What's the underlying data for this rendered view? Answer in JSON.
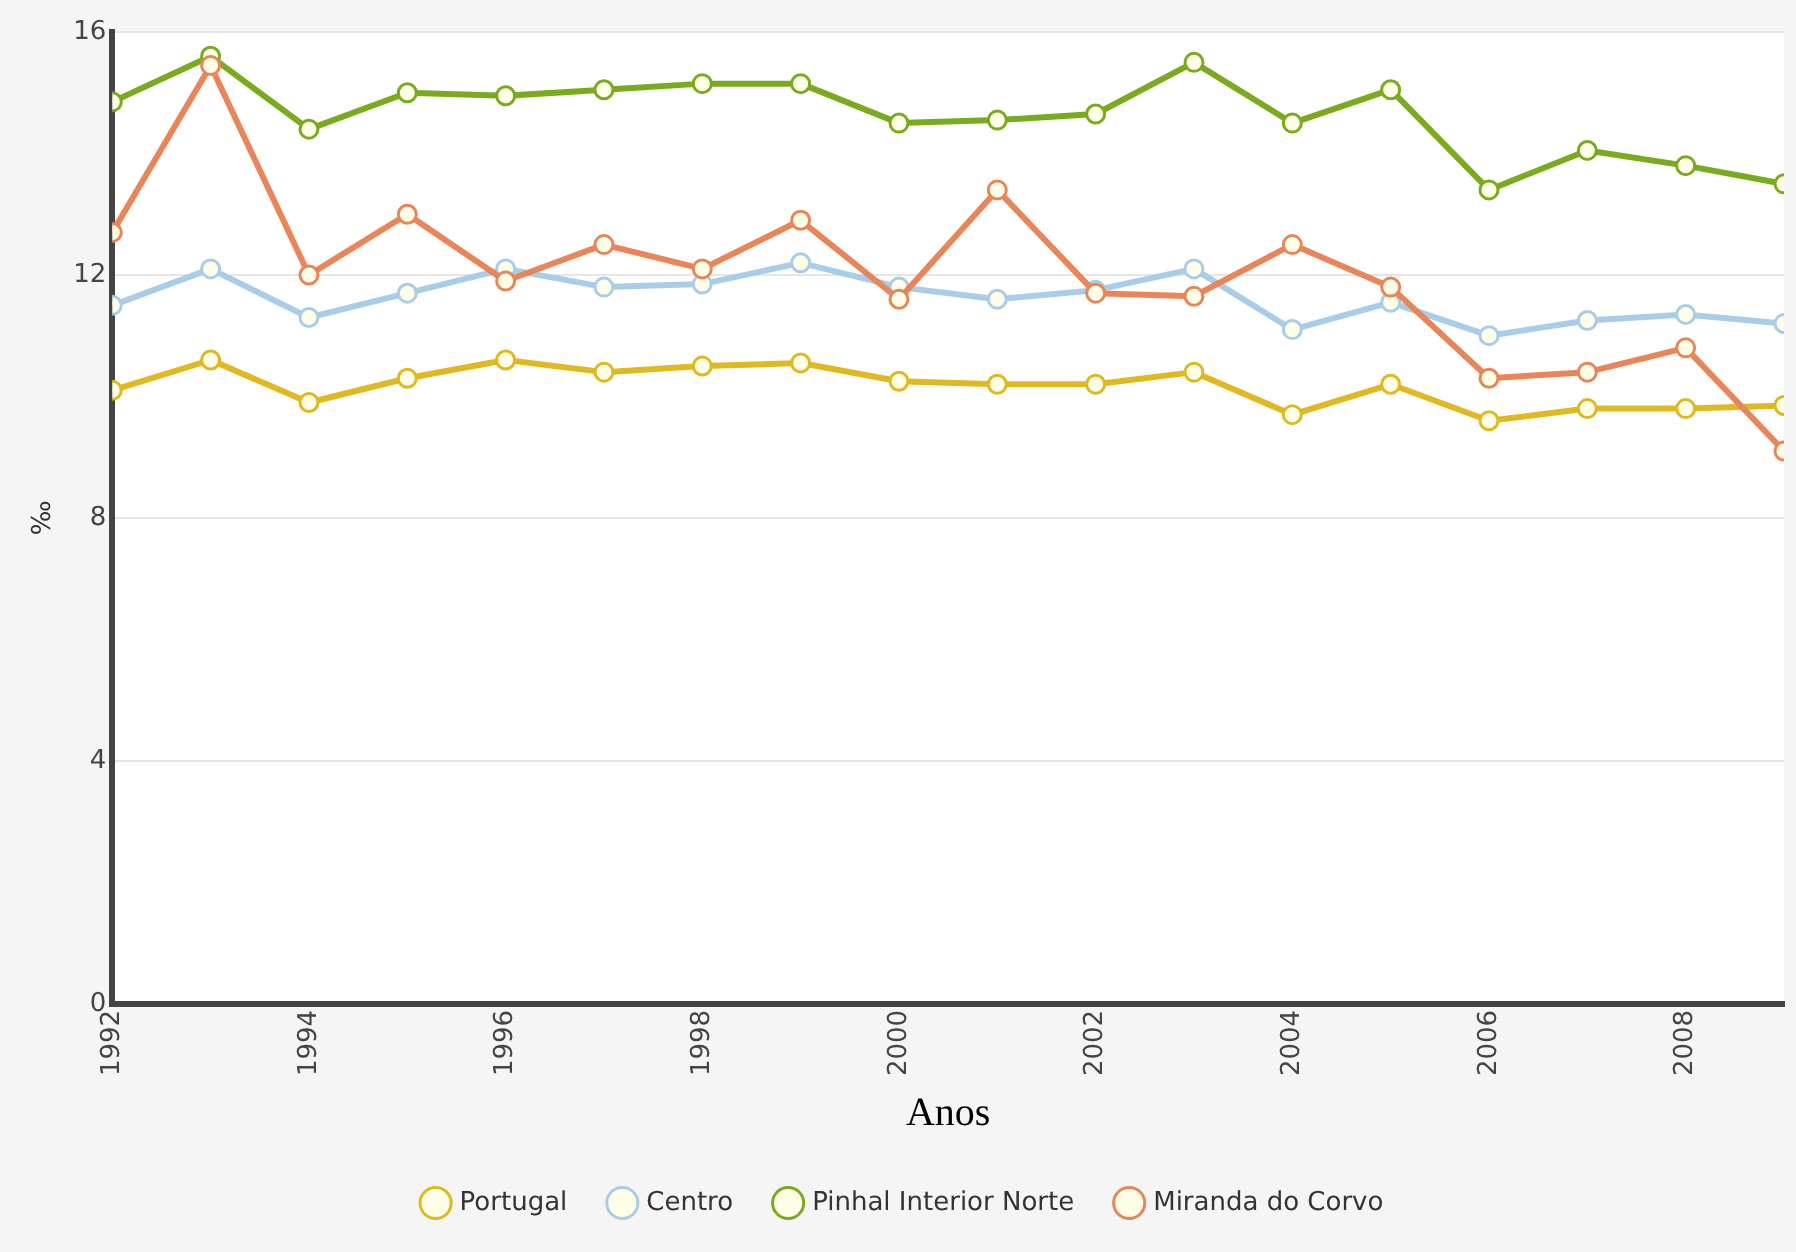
{
  "chart_data": {
    "type": "line",
    "xlabel": "Anos",
    "ylabel": "‰",
    "x": [
      1992,
      1993,
      1994,
      1995,
      1996,
      1997,
      1998,
      1999,
      2000,
      2001,
      2002,
      2003,
      2004,
      2005,
      2006,
      2007,
      2008,
      2009
    ],
    "xlim": [
      1992,
      2009
    ],
    "xticks": [
      1992,
      1994,
      1996,
      1998,
      2000,
      2002,
      2004,
      2006,
      2008
    ],
    "ylim": [
      0,
      16
    ],
    "yticks": [
      0,
      4,
      8,
      12,
      16
    ],
    "grid": "y",
    "legend": "bottom",
    "marker": "circle",
    "series": [
      {
        "name": "Portugal",
        "color": "#e0b820",
        "values": [
          10.1,
          10.6,
          9.9,
          10.3,
          10.6,
          10.4,
          10.5,
          10.55,
          10.25,
          10.2,
          10.2,
          10.4,
          9.7,
          10.2,
          9.6,
          9.8,
          9.8,
          9.85
        ]
      },
      {
        "name": "Centro",
        "color": "#a9cde8",
        "values": [
          11.5,
          12.1,
          11.3,
          11.7,
          12.1,
          11.8,
          11.85,
          12.2,
          11.8,
          11.6,
          11.75,
          12.1,
          11.1,
          11.55,
          11.0,
          11.25,
          11.35,
          11.2
        ]
      },
      {
        "name": "Pinhal Interior Norte",
        "color": "#7aab1e",
        "values": [
          14.85,
          15.6,
          14.4,
          15.0,
          14.95,
          15.05,
          15.15,
          15.15,
          14.5,
          14.55,
          14.65,
          15.5,
          14.5,
          15.05,
          13.4,
          14.05,
          13.8,
          13.5
        ]
      },
      {
        "name": "Miranda do Corvo",
        "color": "#e8865a",
        "values": [
          12.7,
          15.45,
          12.0,
          13.0,
          11.9,
          12.5,
          12.1,
          12.9,
          11.6,
          13.4,
          11.7,
          11.65,
          12.5,
          11.8,
          10.3,
          10.4,
          10.8,
          9.1
        ]
      }
    ]
  }
}
